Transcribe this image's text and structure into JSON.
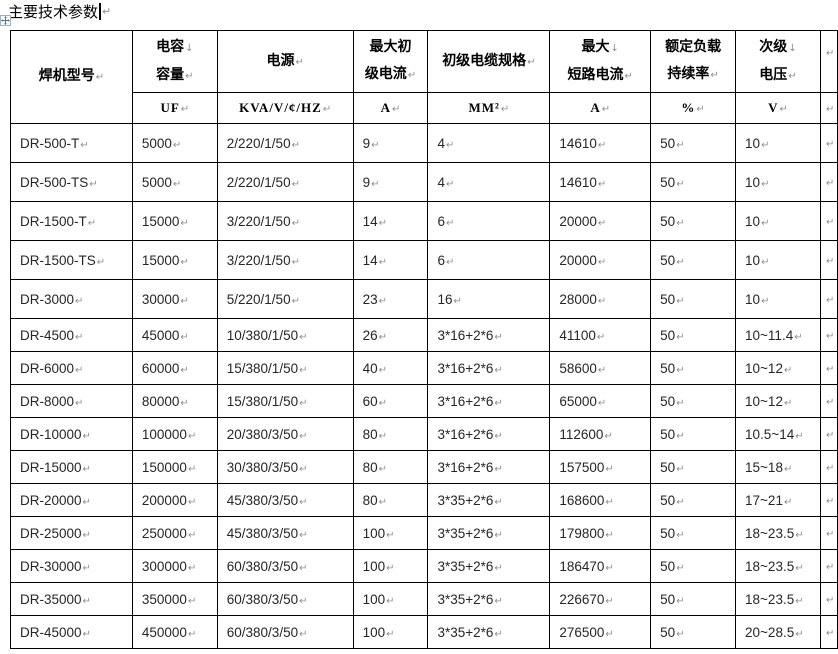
{
  "document": {
    "title": "主要技术参数",
    "colors": {
      "background": "#ffffff",
      "border": "#000000",
      "header_text": "#000000",
      "body_text": "#262626",
      "formatting_mark": "#8f8f8f",
      "handle_border": "#9db3cd"
    }
  },
  "formatting_marks": {
    "line_break": "↓",
    "cell_end": "↵",
    "row_end": "↵",
    "paragraph_end": "↵"
  },
  "icons": {
    "table_move_handle": "four-way-arrow-icon"
  },
  "table": {
    "columns": [
      {
        "id": "model",
        "label_lines": [
          "焊机型号"
        ],
        "breaks": [],
        "unit": null
      },
      {
        "id": "capacitance",
        "label_lines": [
          "电容",
          "容量"
        ],
        "breaks": [
          0
        ],
        "unit": "UF"
      },
      {
        "id": "power-supply",
        "label_lines": [
          "电源"
        ],
        "breaks": [],
        "unit": "KVA/V/¢/HZ"
      },
      {
        "id": "max-primary-current",
        "label_lines": [
          "最大初",
          "级电流"
        ],
        "breaks": [],
        "unit": "A"
      },
      {
        "id": "primary-cable-spec",
        "label_lines": [
          "初级电缆规格"
        ],
        "breaks": [],
        "unit": "MM²"
      },
      {
        "id": "max-short-circuit-current",
        "label_lines": [
          "最大",
          "短路电流"
        ],
        "breaks": [
          0
        ],
        "unit": "A"
      },
      {
        "id": "rated-duty-cycle",
        "label_lines": [
          "额定负载",
          "持续率"
        ],
        "breaks": [],
        "unit": "%"
      },
      {
        "id": "secondary-voltage",
        "label_lines": [
          "次级",
          "电压"
        ],
        "breaks": [
          0
        ],
        "unit": "V"
      }
    ],
    "rows": [
      [
        "DR-500-T",
        "5000",
        "2/220/1/50",
        "9",
        "4",
        "14610",
        "50",
        "10"
      ],
      [
        "DR-500-TS",
        "5000",
        "2/220/1/50",
        "9",
        "4",
        "14610",
        "50",
        "10"
      ],
      [
        "DR-1500-T",
        "15000",
        "3/220/1/50",
        "14",
        "6",
        "20000",
        "50",
        "10"
      ],
      [
        "DR-1500-TS",
        "15000",
        "3/220/1/50",
        "14",
        "6",
        "20000",
        "50",
        "10"
      ],
      [
        "DR-3000",
        "30000",
        "5/220/1/50",
        "23",
        "16",
        "28000",
        "50",
        "10"
      ],
      [
        "DR-4500",
        "45000",
        "10/380/1/50",
        "26",
        "3*16+2*6",
        "41100",
        "50",
        "10~11.4"
      ],
      [
        "DR-6000",
        "60000",
        "15/380/1/50",
        "40",
        "3*16+2*6",
        "58600",
        "50",
        "10~12"
      ],
      [
        "DR-8000",
        "80000",
        "15/380/1/50",
        "60",
        "3*16+2*6",
        "65000",
        "50",
        "10~12"
      ],
      [
        "DR-10000",
        "100000",
        "20/380/3/50",
        "80",
        "3*16+2*6",
        "112600",
        "50",
        "10.5~14"
      ],
      [
        "DR-15000",
        "150000",
        "30/380/3/50",
        "80",
        "3*16+2*6",
        "157500",
        "50",
        "15~18"
      ],
      [
        "DR-20000",
        "200000",
        "45/380/3/50",
        "80",
        "3*35+2*6",
        "168600",
        "50",
        "17~21"
      ],
      [
        "DR-25000",
        "250000",
        "45/380/3/50",
        "100",
        "3*35+2*6",
        "179800",
        "50",
        "18~23.5"
      ],
      [
        "DR-30000",
        "300000",
        "60/380/3/50",
        "100",
        "3*35+2*6",
        "186470",
        "50",
        "18~23.5"
      ],
      [
        "DR-35000",
        "350000",
        "60/380/3/50",
        "100",
        "3*35+2*6",
        "226670",
        "50",
        "18~23.5"
      ],
      [
        "DR-45000",
        "450000",
        "60/380/3/50",
        "100",
        "3*35+2*6",
        "276500",
        "50",
        "20~28.5"
      ]
    ]
  }
}
